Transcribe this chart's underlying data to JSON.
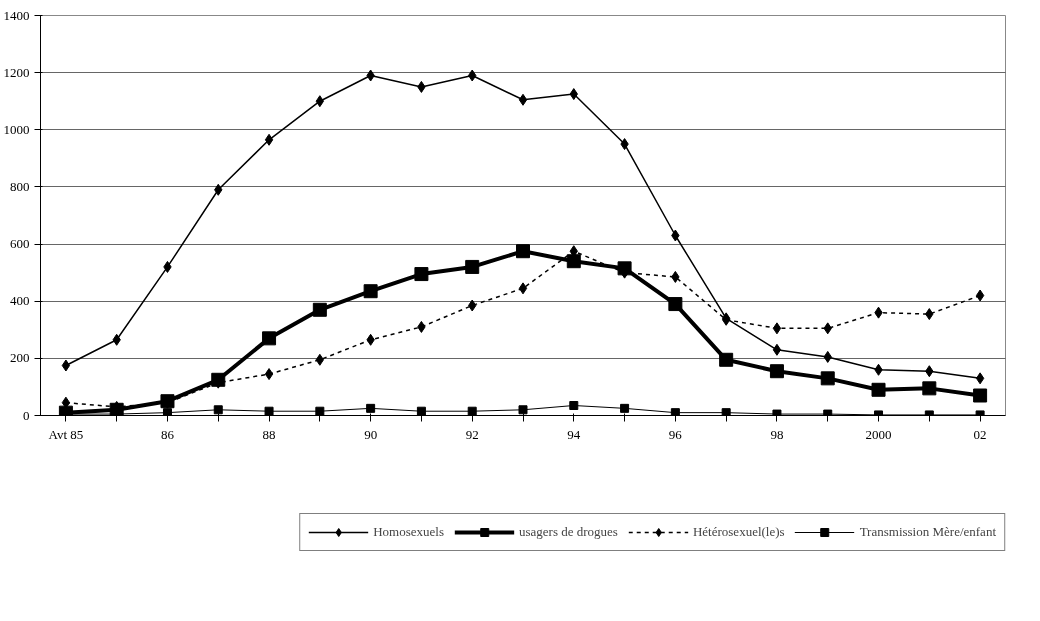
{
  "chart_data": {
    "type": "line",
    "categories": [
      "Avt 85",
      null,
      "86",
      null,
      "88",
      null,
      "90",
      null,
      "92",
      null,
      "94",
      null,
      "96",
      null,
      "98",
      null,
      "2000",
      null,
      "02"
    ],
    "series": [
      {
        "name": "Homosexuels",
        "color": "#000000",
        "marker": "diamond",
        "line_style": "solid",
        "values": [
          175,
          265,
          520,
          790,
          965,
          1100,
          1190,
          1150,
          1190,
          1105,
          1125,
          950,
          630,
          340,
          230,
          205,
          160,
          155,
          130
        ]
      },
      {
        "name": "usagers de drogues",
        "color": "#000000",
        "marker": "square",
        "line_style": "solid",
        "values": [
          10,
          20,
          50,
          125,
          270,
          370,
          435,
          495,
          520,
          575,
          540,
          515,
          390,
          195,
          155,
          130,
          90,
          95,
          70
        ]
      },
      {
        "name": "Hétérosexuel(le)s",
        "color": "#000000",
        "marker": "diamond",
        "line_style": "dashed",
        "values": [
          45,
          30,
          45,
          115,
          145,
          195,
          265,
          310,
          385,
          445,
          575,
          500,
          485,
          335,
          305,
          305,
          360,
          355,
          420
        ]
      },
      {
        "name": "Transmission Mère/enfant",
        "color": "#000000",
        "marker": "square",
        "line_style": "solid",
        "values": [
          5,
          5,
          10,
          20,
          15,
          15,
          25,
          15,
          15,
          20,
          35,
          25,
          10,
          10,
          5,
          5,
          2,
          2,
          2
        ]
      }
    ],
    "ylim": [
      0,
      1400
    ],
    "yticks": [
      0,
      200,
      400,
      600,
      800,
      1000,
      1200,
      1400
    ],
    "grid": "y",
    "legend": "bottom"
  }
}
